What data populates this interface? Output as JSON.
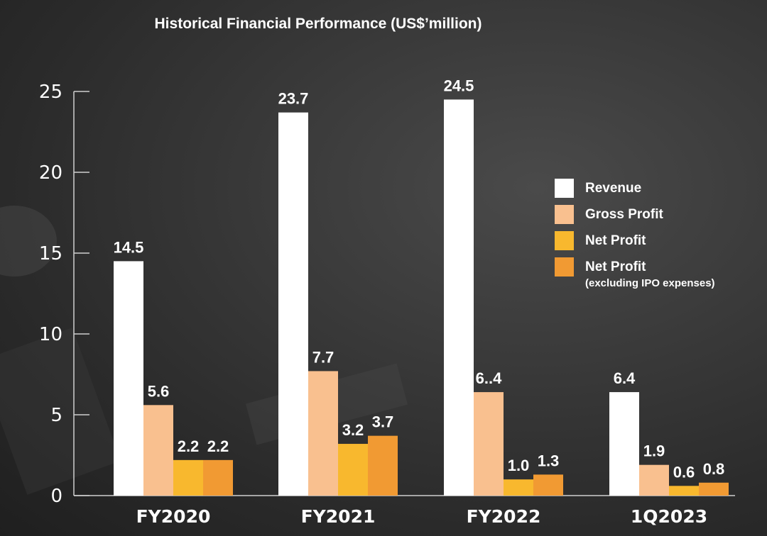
{
  "chart_data": {
    "type": "bar",
    "title": "Historical Financial Performance (US$’million)",
    "categories": [
      "FY2020",
      "FY2021",
      "FY2022",
      "1Q2023"
    ],
    "ylim": [
      0,
      25
    ],
    "yticks": [
      0,
      5,
      10,
      15,
      20,
      25
    ],
    "grid": false,
    "legend_position": "right",
    "series": [
      {
        "name": "Revenue",
        "color": "#ffffff",
        "values": [
          14.5,
          23.7,
          24.5,
          6.4
        ],
        "labels": [
          "14.5",
          "23.7",
          "24.5",
          "6.4"
        ]
      },
      {
        "name": "Gross Profit",
        "color": "#f9c08f",
        "values": [
          5.6,
          7.7,
          6.4,
          1.9
        ],
        "labels": [
          "5.6",
          "7.7",
          "6..4",
          "1.9"
        ]
      },
      {
        "name": "Net Profit",
        "color": "#f8b82e",
        "values": [
          2.2,
          3.2,
          1.0,
          0.6
        ],
        "labels": [
          "2.2",
          "3.2",
          "1.0",
          "0.6"
        ]
      },
      {
        "name": "Net Profit",
        "note": "(excluding IPO expenses)",
        "color": "#f19a33",
        "values": [
          2.2,
          3.7,
          1.3,
          0.8
        ],
        "labels": [
          "2.2",
          "3.7",
          "1.3",
          "0.8"
        ]
      }
    ]
  }
}
